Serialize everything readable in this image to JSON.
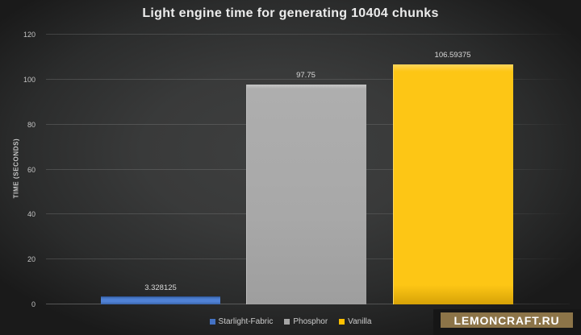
{
  "chart_data": {
    "type": "bar",
    "title": "Light engine time for generating 10404 chunks",
    "ylabel": "TIME (SECONDS)",
    "xlabel": "",
    "ylim": [
      0,
      120
    ],
    "yticks": [
      0,
      20,
      40,
      60,
      80,
      100,
      120
    ],
    "grid": true,
    "legend_position": "bottom",
    "categories": [
      "Starlight-Fabric",
      "Phosphor",
      "Vanilla"
    ],
    "values": [
      3.328125,
      97.75,
      106.59375
    ],
    "data_labels": [
      "3.328125",
      "97.75",
      "106.59375"
    ],
    "colors": [
      "#4472c4",
      "#a6a6a6",
      "#ffc000"
    ]
  },
  "watermark": {
    "text": "LEMONCRAFT.RU",
    "badge_color": "#8c7448"
  }
}
